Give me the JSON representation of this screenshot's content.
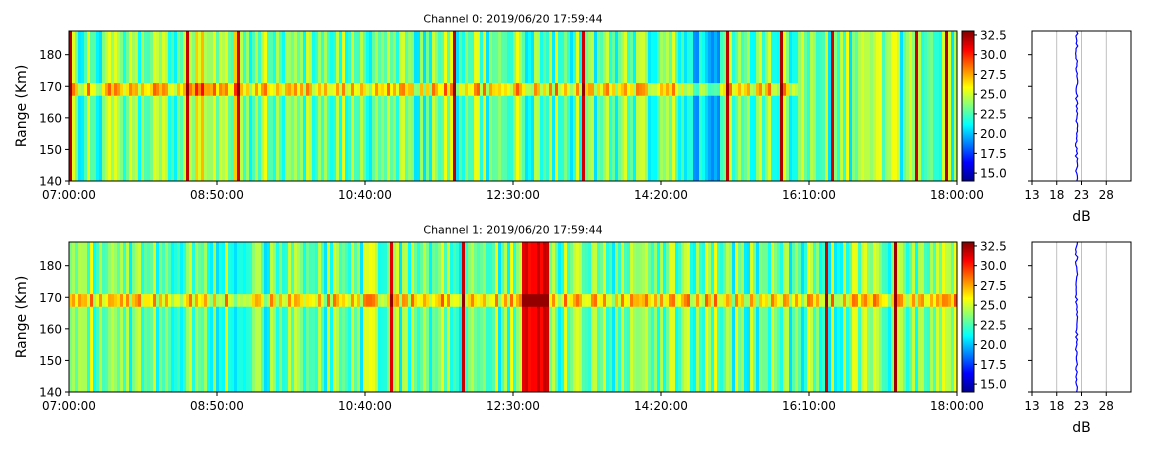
{
  "chart_data": [
    {
      "type": "heatmap",
      "title": "Channel 0: 2019/06/20 17:59:44",
      "ylabel": "Range (Km)",
      "xlabel": "",
      "x_range": [
        "07:00:00",
        "18:00:00"
      ],
      "ylim": [
        140,
        187.5
      ],
      "x_ticks": [
        "07:00:00",
        "08:50:00",
        "10:40:00",
        "12:30:00",
        "14:20:00",
        "16:10:00",
        "18:00:00"
      ],
      "y_ticks": [
        140,
        150,
        160,
        170,
        180
      ],
      "colorbar": {
        "colormap": "jet",
        "range": [
          14,
          33
        ],
        "ticks": [
          "15.0",
          "17.5",
          "20.0",
          "22.5",
          "25.0",
          "27.5",
          "30.0",
          "32.5"
        ]
      },
      "noise_profile": {
        "xlabel": "dB",
        "x_ticks": [
          13,
          18,
          23,
          28
        ],
        "xlim": [
          13,
          33
        ],
        "mean_db": 22
      }
    },
    {
      "type": "heatmap",
      "title": "Channel 1: 2019/06/20 17:59:44",
      "ylabel": "Range (Km)",
      "xlabel": "",
      "x_range": [
        "07:00:00",
        "18:00:00"
      ],
      "ylim": [
        140,
        187.5
      ],
      "x_ticks": [
        "07:00:00",
        "08:50:00",
        "10:40:00",
        "12:30:00",
        "14:20:00",
        "16:10:00",
        "18:00:00"
      ],
      "y_ticks": [
        140,
        150,
        160,
        170,
        180
      ],
      "colorbar": {
        "colormap": "jet",
        "range": [
          14,
          33
        ],
        "ticks": [
          "15.0",
          "17.5",
          "20.0",
          "22.5",
          "25.0",
          "27.5",
          "30.0",
          "32.5"
        ]
      },
      "noise_profile": {
        "xlabel": "dB",
        "x_ticks": [
          13,
          18,
          23,
          28
        ],
        "xlim": [
          13,
          33
        ],
        "mean_db": 22
      }
    }
  ]
}
